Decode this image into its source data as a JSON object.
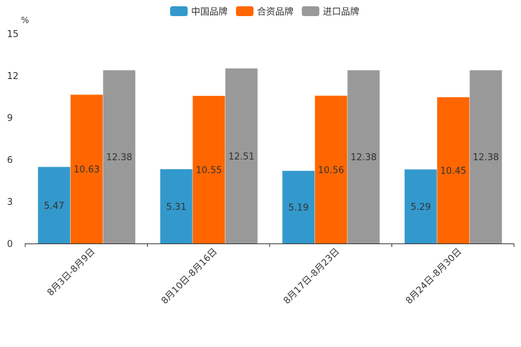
{
  "chart_data": {
    "type": "bar",
    "unit": "%",
    "ylim": [
      0,
      15
    ],
    "yticks": [
      0,
      3,
      6,
      9,
      12,
      15
    ],
    "categories": [
      "8月3日-8月9日",
      "8月10日-8月16日",
      "8月17日-8月23日",
      "8月24日-8月30日"
    ],
    "series": [
      {
        "name": "中国品牌",
        "color": "#3399cc",
        "values": [
          5.47,
          5.31,
          5.19,
          5.29
        ]
      },
      {
        "name": "合资品牌",
        "color": "#ff6600",
        "values": [
          10.63,
          10.55,
          10.56,
          10.45
        ]
      },
      {
        "name": "进口品牌",
        "color": "#999999",
        "values": [
          12.38,
          12.51,
          12.38,
          12.38
        ]
      }
    ],
    "legend_position": "top-center",
    "grid": false
  }
}
